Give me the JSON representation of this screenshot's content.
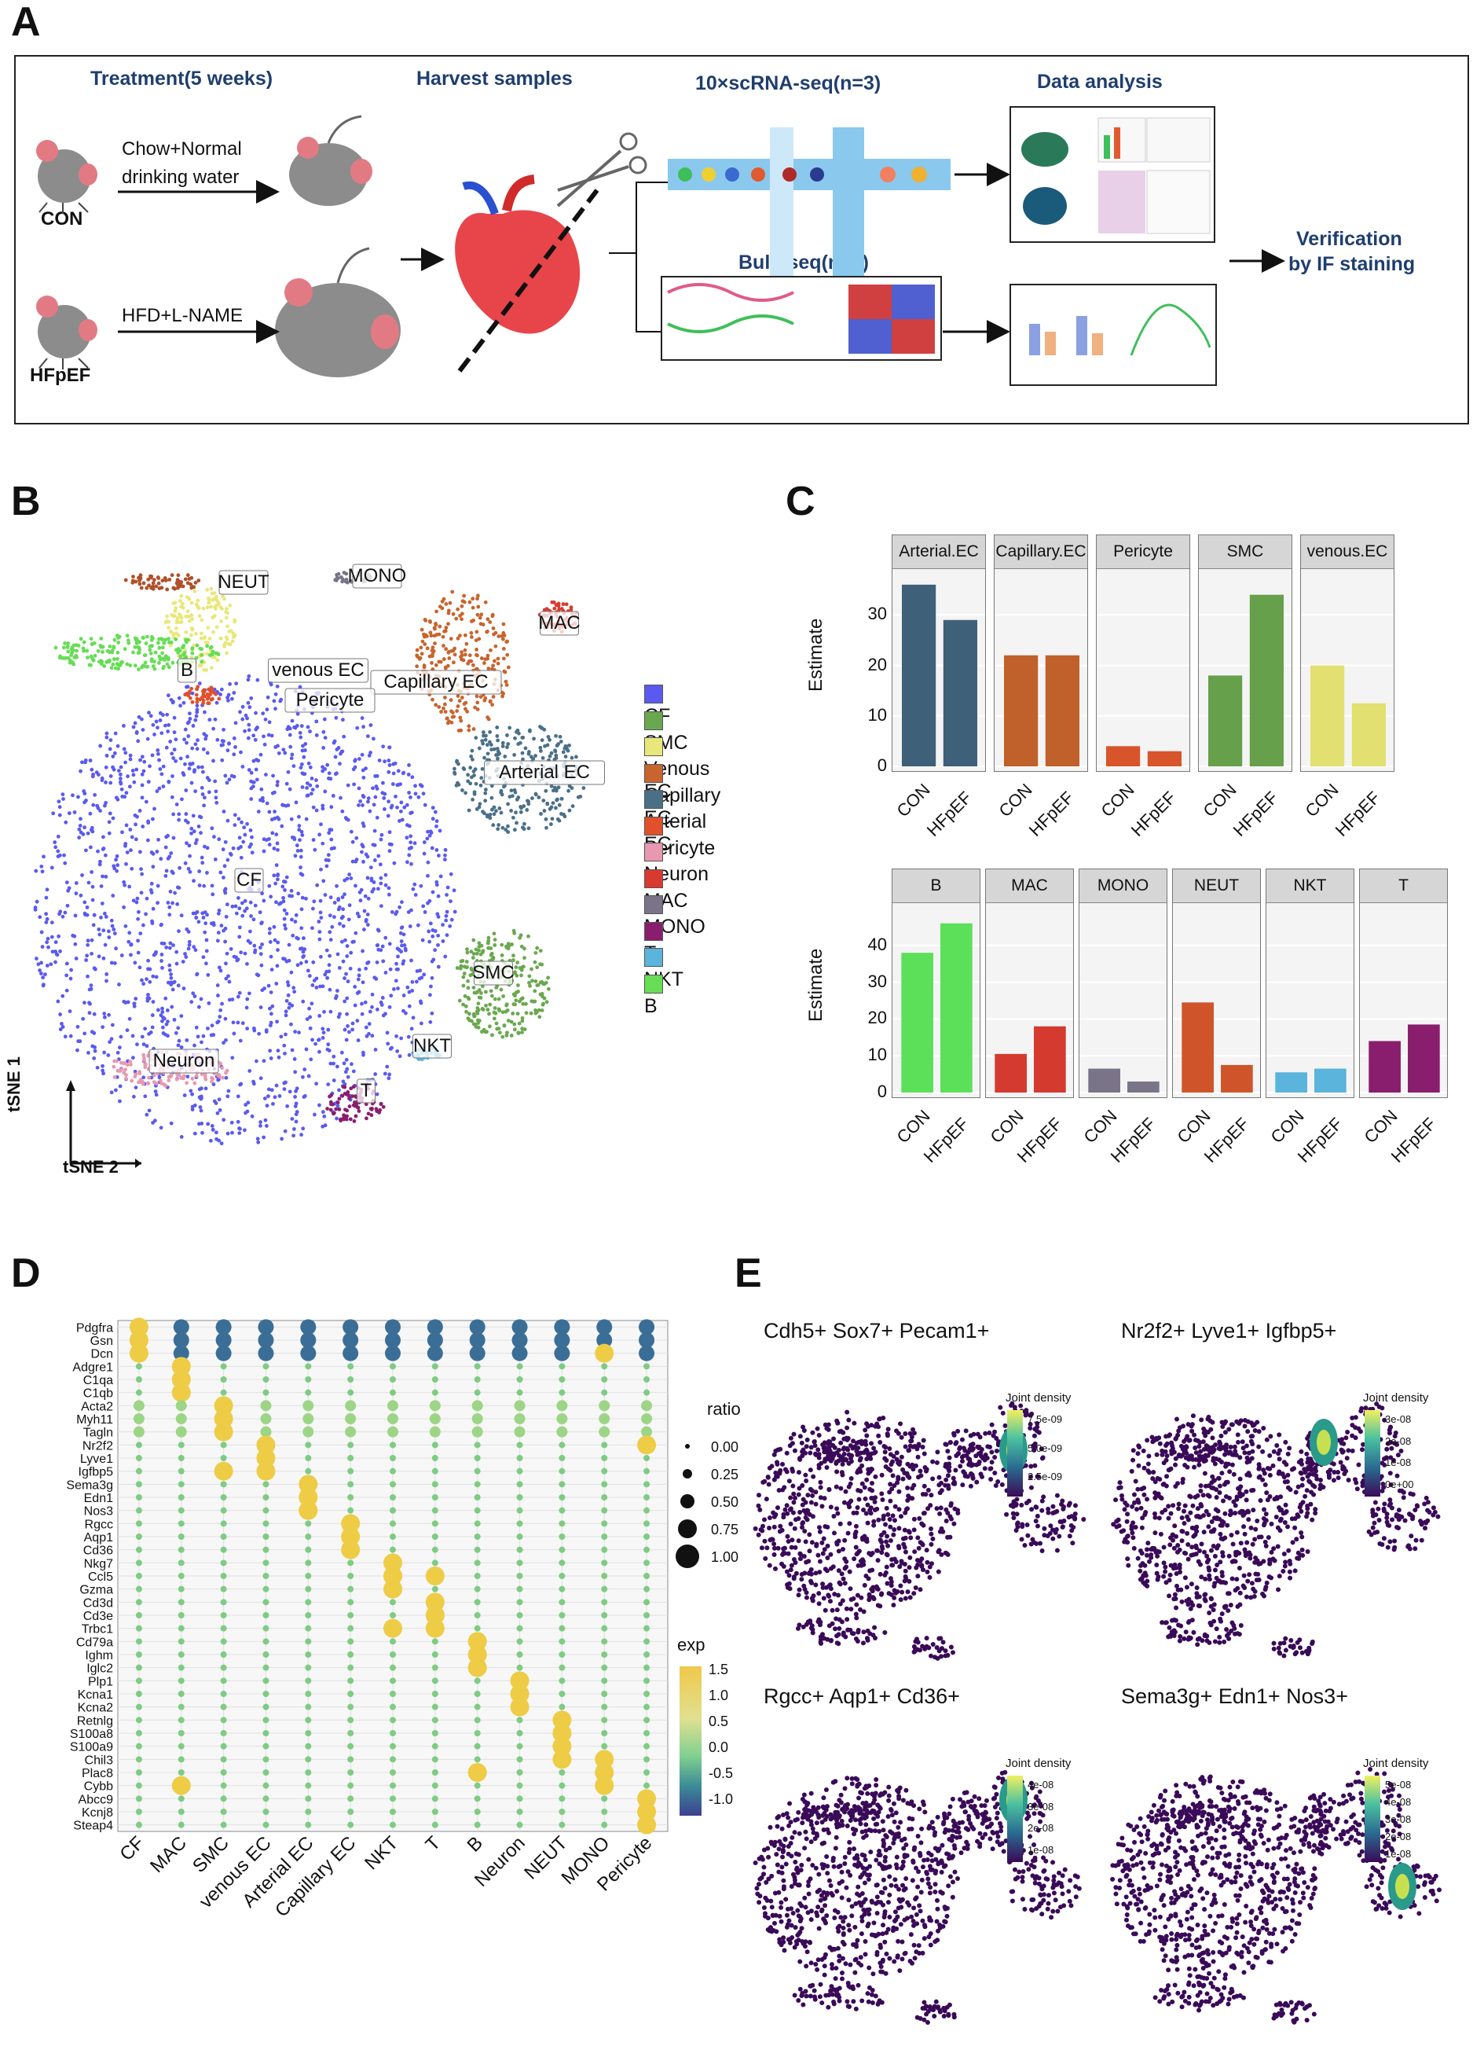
{
  "panels": {
    "a": "A",
    "b": "B",
    "c": "C",
    "d": "D",
    "e": "E"
  },
  "panelA": {
    "treatment_title": "Treatment(5 weeks)",
    "harvest_title": "Harvest samples",
    "scrna_title": "10×scRNA-seq(n=3)",
    "analysis_title": "Data analysis",
    "bulk_title": "Bulk-seq(n=5)",
    "con_arrow_line1": "Chow+Normal",
    "con_arrow_line2": "drinking water",
    "con_label": "CON",
    "hfpef_arrow": "HFD+L-NAME",
    "hfpef_label": "HFpEF",
    "verify_line1": "Verification",
    "verify_line2": "by IF staining"
  },
  "panelB": {
    "axis1": "tSNE 1",
    "axis2": "tSNE 2",
    "cluster_labels": [
      "NEUT",
      "MONO",
      "MAC",
      "B",
      "venous EC",
      "Capillary EC",
      "Pericyte",
      "Arterial EC",
      "CF",
      "SMC",
      "NKT",
      "Neuron",
      "T"
    ],
    "legend": [
      {
        "name": "CF",
        "color": "#5a5af0"
      },
      {
        "name": "SMC",
        "color": "#6aa84f"
      },
      {
        "name": "Venous EC",
        "color": "#e8e87a"
      },
      {
        "name": "Capillary EC",
        "color": "#c8642e"
      },
      {
        "name": "Arterial EC",
        "color": "#4a7088"
      },
      {
        "name": "Pericyte",
        "color": "#e0502a"
      },
      {
        "name": "Neuron",
        "color": "#e898b0"
      },
      {
        "name": "MAC",
        "color": "#d93a30"
      },
      {
        "name": "MONO",
        "color": "#7a7488"
      },
      {
        "name": "T",
        "color": "#8a1e6e"
      },
      {
        "name": "NKT",
        "color": "#5ab4dc"
      },
      {
        "name": "B",
        "color": "#66dd55"
      }
    ]
  },
  "chart_data": [
    {
      "type": "bar",
      "panel": "C-top",
      "ylabel": "Estimate",
      "categories": [
        "CON",
        "HFpEF"
      ],
      "facets": [
        {
          "name": "Arterial.EC",
          "values": [
            36,
            29
          ],
          "color": "#3e6078"
        },
        {
          "name": "Capillary.EC",
          "values": [
            22,
            22
          ],
          "color": "#c0602a"
        },
        {
          "name": "Pericyte",
          "values": [
            4,
            3
          ],
          "color": "#d8542a"
        },
        {
          "name": "SMC",
          "values": [
            18,
            34
          ],
          "color": "#66a04a"
        },
        {
          "name": "venous.EC",
          "values": [
            20,
            12.5
          ],
          "color": "#e2e070"
        }
      ],
      "ylim": [
        0,
        38
      ],
      "yticks": [
        0,
        10,
        20,
        30
      ]
    },
    {
      "type": "bar",
      "panel": "C-bottom",
      "ylabel": "Estimate",
      "categories": [
        "CON",
        "HFpEF"
      ],
      "facets": [
        {
          "name": "B",
          "values": [
            38,
            46
          ],
          "color": "#5ce05a"
        },
        {
          "name": "MAC",
          "values": [
            10.5,
            18
          ],
          "color": "#d43a2e"
        },
        {
          "name": "MONO",
          "values": [
            6.5,
            3
          ],
          "color": "#7a7488"
        },
        {
          "name": "NEUT",
          "values": [
            24.5,
            7.5
          ],
          "color": "#d0542a"
        },
        {
          "name": "NKT",
          "values": [
            5.5,
            6.5
          ],
          "color": "#5ab4dc"
        },
        {
          "name": "T",
          "values": [
            14,
            18.5
          ],
          "color": "#8a1e6e"
        }
      ],
      "ylim": [
        0,
        50
      ],
      "yticks": [
        0,
        10,
        20,
        30,
        40
      ]
    },
    {
      "type": "scatter",
      "panel": "D",
      "x": [
        "CF",
        "MAC",
        "SMC",
        "venous EC",
        "Arterial EC",
        "Capillary EC",
        "NKT",
        "T",
        "B",
        "Neuron",
        "NEUT",
        "MONO",
        "Pericyte"
      ],
      "genes": [
        "Pdgfra",
        "Gsn",
        "Dcn",
        "Adgre1",
        "C1qa",
        "C1qb",
        "Acta2",
        "Myh11",
        "Tagln",
        "Nr2f2",
        "Lyve1",
        "Igfbp5",
        "Sema3g",
        "Edn1",
        "Nos3",
        "Rgcc",
        "Aqp1",
        "Cd36",
        "Nkg7",
        "Ccl5",
        "Gzma",
        "Cd3d",
        "Cd3e",
        "Trbc1",
        "Cd79a",
        "Ighm",
        "Iglc2",
        "Plp1",
        "Kcna1",
        "Kcna2",
        "Retnlg",
        "S100a8",
        "S100a9",
        "Chil3",
        "Plac8",
        "Cybb",
        "Abcc9",
        "Kcnj8",
        "Steap4"
      ],
      "ratio_legend": {
        "title": "ratio",
        "values": [
          "0.00",
          "0.25",
          "0.50",
          "0.75",
          "1.00"
        ]
      },
      "exp_legend": {
        "title": "exp",
        "values": [
          "1.5",
          "1.0",
          "0.5",
          "0.0",
          "-0.5",
          "-1.0"
        ]
      }
    }
  ],
  "panelE": {
    "titles": [
      "Cdh5+ Sox7+ Pecam1+",
      "Nr2f2+ Lyve1+ Igfbp5+",
      "Rgcc+ Aqp1+ Cd36+",
      "Sema3g+ Edn1+ Nos3+"
    ],
    "legend_title": "Joint density",
    "scales": [
      [
        "7.5e-09",
        "5.0e-09",
        "2.5e-09"
      ],
      [
        "3e-08",
        "2e-08",
        "1e-08",
        "0e+00"
      ],
      [
        "4e-08",
        "3e-08",
        "2e-08",
        "1e-08"
      ],
      [
        "5e-08",
        "4e-08",
        "3e-08",
        "2e-08",
        "1e-08"
      ]
    ]
  }
}
